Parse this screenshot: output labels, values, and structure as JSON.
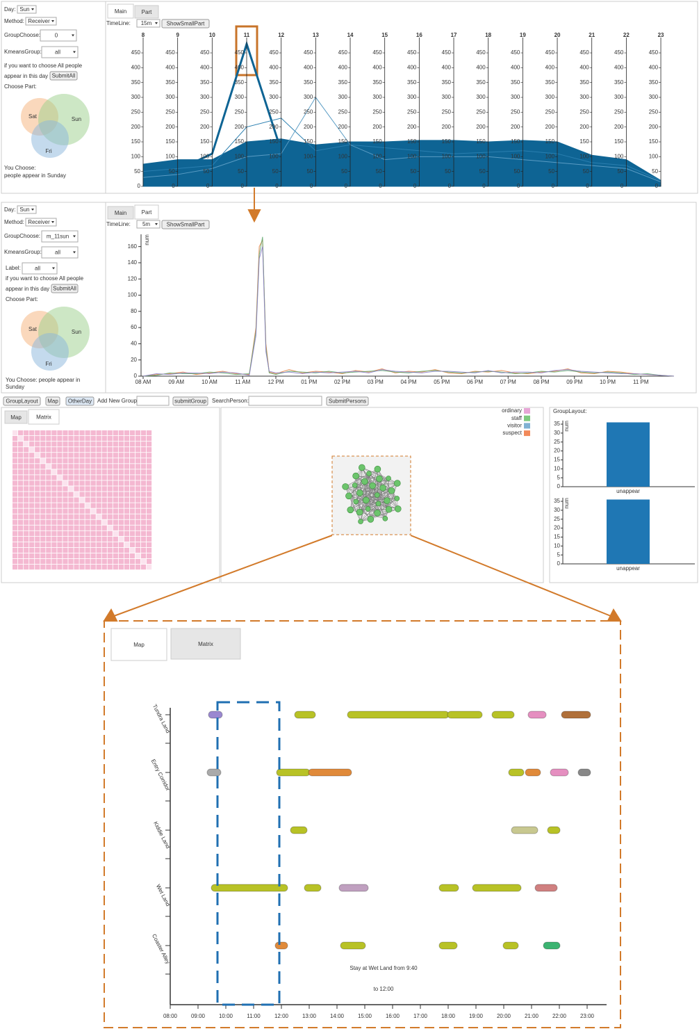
{
  "main_panel": {
    "day_label": "Day:",
    "day": "Sun",
    "method_label": "Method:",
    "method": "Receiver",
    "group_label": "GroupChoose:",
    "group": "0",
    "kmeans_label": "KmeansGroup:",
    "kmeans": "all",
    "note_lines": [
      "if you want to choose All people",
      "appear in this day"
    ],
    "submit": "SubmitAll",
    "choose_part": "Choose Part:",
    "venn": [
      "Sat",
      "Sun",
      "Fri"
    ],
    "you_choose": [
      "You Choose:",
      "people appear in Sunday"
    ],
    "tabs": [
      "Main",
      "Part"
    ],
    "timeline_label": "TimeLine:",
    "timeline": "15m",
    "show_button": "ShowSmallPart"
  },
  "part_panel": {
    "day_label": "Day:",
    "day": "Sun",
    "method_label": "Method:",
    "method": "Receiver",
    "group_label": "GroupChoose:",
    "group": "m_11sun",
    "kmeans_label": "KmeansGroup:",
    "kmeans": "all",
    "label_label": "Label:",
    "label": "all",
    "note_lines": [
      "if you want to choose All people",
      "appear in this day"
    ],
    "submit": "SubmitAll",
    "choose_part": "Choose Part:",
    "venn": [
      "Sat",
      "Sun",
      "Fri"
    ],
    "you_choose": [
      "You Choose: people appear in",
      "Sunday"
    ],
    "tabs": [
      "Main",
      "Part"
    ],
    "timeline_label": "TimeLine:",
    "timeline": "5m",
    "show_button": "ShowSmallPart"
  },
  "toolbar": {
    "buttons_left": [
      "GroupLayout",
      "Map",
      "OtherDay"
    ],
    "add_group_label": "Add New Group:",
    "submit_group": "submitGroup",
    "search_label": "SearchPerson:",
    "submit_persons": "SubmitPersons"
  },
  "matrix_panel": {
    "tabs": [
      "Map",
      "Matrix"
    ]
  },
  "graph_panel": {
    "legend": [
      {
        "label": "ordinary",
        "color": "#e7a6d6"
      },
      {
        "label": "staff",
        "color": "#7fc97f"
      },
      {
        "label": "visitor",
        "color": "#80b1d3"
      },
      {
        "label": "suspect",
        "color": "#f28a5a"
      }
    ]
  },
  "group_layout": {
    "title": "GroupLayout:"
  },
  "zoom_view": {
    "tabs": [
      "Map",
      "Matrix"
    ]
  },
  "chart_data": [
    {
      "type": "parallel",
      "categories": [
        8,
        9,
        10,
        11,
        12,
        13,
        14,
        15,
        16,
        17,
        18,
        19,
        20,
        21,
        22,
        23
      ],
      "ylim": [
        0,
        500
      ],
      "yticks": [
        0,
        50,
        100,
        150,
        200,
        250,
        300,
        350,
        400,
        450
      ],
      "series": [
        {
          "color": "#0e6494",
          "fill": true,
          "values": [
            75,
            90,
            90,
            150,
            160,
            140,
            150,
            150,
            155,
            155,
            150,
            155,
            150,
            105,
            90,
            20
          ]
        },
        {
          "color": "#0e6494",
          "values": [
            40,
            55,
            110,
            480,
            120,
            100,
            110,
            100,
            95,
            100,
            90,
            95,
            90,
            70,
            60,
            15
          ]
        },
        {
          "color": "#2a7fb0",
          "values": [
            50,
            60,
            70,
            200,
            230,
            120,
            140,
            130,
            120,
            110,
            115,
            120,
            110,
            80,
            70,
            20
          ]
        },
        {
          "color": "#5a9cc4",
          "values": [
            30,
            40,
            60,
            100,
            110,
            300,
            140,
            90,
            100,
            100,
            100,
            90,
            80,
            70,
            60,
            15
          ]
        }
      ]
    },
    {
      "type": "line",
      "ylabel": "num",
      "x": [
        8,
        8.4,
        8.8,
        9.2,
        9.6,
        10,
        10.4,
        10.8,
        11.2,
        11.4,
        11.5,
        11.6,
        11.7,
        11.8,
        12,
        12.4,
        12.8,
        13.2,
        13.6,
        14,
        14.4,
        14.8,
        15.2,
        15.6,
        16,
        16.4,
        16.8,
        17.2,
        17.6,
        18,
        18.4,
        18.8,
        19.2,
        19.6,
        20,
        20.4,
        20.8,
        21.2,
        21.6,
        22,
        22.4,
        22.8,
        23.2,
        23.6,
        24
      ],
      "xlim": [
        8,
        24
      ],
      "xticks": [
        {
          "value": 8,
          "label": "08 AM"
        },
        {
          "value": 9,
          "label": "09 AM"
        },
        {
          "value": 10,
          "label": "10 AM"
        },
        {
          "value": 11,
          "label": "11 AM"
        },
        {
          "value": 12,
          "label": "12 PM"
        },
        {
          "value": 13,
          "label": "01 PM"
        },
        {
          "value": 14,
          "label": "02 PM"
        },
        {
          "value": 15,
          "label": "03 PM"
        },
        {
          "value": 16,
          "label": "04 PM"
        },
        {
          "value": 17,
          "label": "05 PM"
        },
        {
          "value": 18,
          "label": "06 PM"
        },
        {
          "value": 19,
          "label": "07 PM"
        },
        {
          "value": 20,
          "label": "08 PM"
        },
        {
          "value": 21,
          "label": "09 PM"
        },
        {
          "value": 22,
          "label": "10 PM"
        },
        {
          "value": 23,
          "label": "11 PM"
        }
      ],
      "ylim": [
        0,
        170
      ],
      "yticks": [
        0,
        20,
        40,
        60,
        80,
        100,
        120,
        140,
        160
      ],
      "series": [
        {
          "color": "#e07b39",
          "values": [
            0,
            2,
            3,
            5,
            2,
            4,
            6,
            3,
            2,
            60,
            160,
            168,
            40,
            5,
            3,
            8,
            4,
            6,
            5,
            3,
            7,
            5,
            9,
            4,
            6,
            5,
            8,
            4,
            3,
            6,
            5,
            7,
            4,
            3,
            5,
            6,
            9,
            4,
            3,
            6,
            5,
            3,
            2,
            1,
            0
          ]
        },
        {
          "color": "#5aa469",
          "values": [
            0,
            1,
            4,
            3,
            3,
            5,
            4,
            2,
            3,
            55,
            150,
            172,
            35,
            4,
            2,
            6,
            5,
            4,
            6,
            4,
            5,
            6,
            7,
            5,
            4,
            6,
            7,
            5,
            4,
            5,
            6,
            5,
            3,
            4,
            6,
            5,
            7,
            5,
            4,
            5,
            4,
            2,
            3,
            1,
            0
          ]
        },
        {
          "color": "#8a7cc8",
          "values": [
            0,
            3,
            2,
            4,
            4,
            3,
            5,
            4,
            1,
            50,
            145,
            160,
            30,
            6,
            4,
            5,
            3,
            5,
            4,
            5,
            6,
            4,
            8,
            6,
            5,
            4,
            6,
            6,
            5,
            4,
            7,
            4,
            5,
            5,
            4,
            7,
            8,
            6,
            5,
            4,
            3,
            3,
            2,
            1,
            0
          ]
        }
      ]
    },
    {
      "type": "bar",
      "ylabel": "num",
      "categories": [
        "unappear"
      ],
      "values": [
        36
      ],
      "color": "#1f77b4",
      "ylim": [
        0,
        37
      ],
      "yticks": [
        0,
        5,
        10,
        15,
        20,
        25,
        30,
        35
      ]
    },
    {
      "type": "bar",
      "ylabel": "num",
      "categories": [
        "unappear"
      ],
      "values": [
        36
      ],
      "color": "#1f77b4",
      "ylim": [
        0,
        37
      ],
      "yticks": [
        0,
        5,
        10,
        15,
        20,
        25,
        30,
        35
      ]
    },
    {
      "type": "timeline",
      "categories": [
        "Tundra Land",
        "Entry Corridor",
        "Kiddie Land",
        "Wet Land",
        "Coaster Alley"
      ],
      "xlim": [
        8,
        23.7
      ],
      "xticks": [
        {
          "value": 8,
          "label": "08:00"
        },
        {
          "value": 9,
          "label": "09:00"
        },
        {
          "value": 10,
          "label": "10:00"
        },
        {
          "value": 11,
          "label": "11:00"
        },
        {
          "value": 12,
          "label": "12:00"
        },
        {
          "value": 13,
          "label": "13:00"
        },
        {
          "value": 14,
          "label": "14:00"
        },
        {
          "value": 15,
          "label": "15:00"
        },
        {
          "value": 16,
          "label": "16:00"
        },
        {
          "value": 17,
          "label": "17:00"
        },
        {
          "value": 18,
          "label": "18:00"
        },
        {
          "value": 19,
          "label": "19:00"
        },
        {
          "value": 20,
          "label": "20:00"
        },
        {
          "value": 21,
          "label": "21:00"
        },
        {
          "value": 22,
          "label": "22:00"
        },
        {
          "value": 23,
          "label": "23:00"
        }
      ],
      "segments": [
        {
          "category": 0,
          "start": 9.5,
          "end": 9.75,
          "color": "#9a88d0"
        },
        {
          "category": 0,
          "start": 12.6,
          "end": 13.1,
          "color": "#b8c226"
        },
        {
          "category": 0,
          "start": 14.5,
          "end": 17.9,
          "color": "#b8c226"
        },
        {
          "category": 0,
          "start": 18.1,
          "end": 19.1,
          "color": "#b8c226"
        },
        {
          "category": 0,
          "start": 19.7,
          "end": 20.25,
          "color": "#b8c226"
        },
        {
          "category": 0,
          "start": 21,
          "end": 21.4,
          "color": "#e58fc0"
        },
        {
          "category": 0,
          "start": 22.2,
          "end": 23,
          "color": "#b0703a"
        },
        {
          "category": 1,
          "start": 9.45,
          "end": 9.7,
          "color": "#aaaaaa"
        },
        {
          "category": 1,
          "start": 11.95,
          "end": 12.9,
          "color": "#b8c226"
        },
        {
          "category": 1,
          "start": 13.1,
          "end": 14.4,
          "color": "#e08a3a"
        },
        {
          "category": 1,
          "start": 20.3,
          "end": 20.6,
          "color": "#b8c226"
        },
        {
          "category": 1,
          "start": 20.9,
          "end": 21.2,
          "color": "#e08a3a"
        },
        {
          "category": 1,
          "start": 21.8,
          "end": 22.2,
          "color": "#e58fc0"
        },
        {
          "category": 1,
          "start": 22.8,
          "end": 23,
          "color": "#888888"
        },
        {
          "category": 2,
          "start": 12.45,
          "end": 12.8,
          "color": "#b8c226"
        },
        {
          "category": 2,
          "start": 20.4,
          "end": 21.1,
          "color": "#c8c890"
        },
        {
          "category": 2,
          "start": 21.7,
          "end": 21.9,
          "color": "#b8c226"
        },
        {
          "category": 3,
          "start": 9.6,
          "end": 12.1,
          "color": "#b8c226"
        },
        {
          "category": 3,
          "start": 12.95,
          "end": 13.3,
          "color": "#b8c226"
        },
        {
          "category": 3,
          "start": 14.2,
          "end": 15,
          "color": "#c0a0c0"
        },
        {
          "category": 3,
          "start": 17.8,
          "end": 18.25,
          "color": "#b8c226"
        },
        {
          "category": 3,
          "start": 19,
          "end": 20.5,
          "color": "#b8c226"
        },
        {
          "category": 3,
          "start": 21.25,
          "end": 21.8,
          "color": "#d08080"
        },
        {
          "category": 4,
          "start": 11.9,
          "end": 12.1,
          "color": "#e08a3a"
        },
        {
          "category": 4,
          "start": 14.25,
          "end": 14.9,
          "color": "#b8c226"
        },
        {
          "category": 4,
          "start": 17.8,
          "end": 18.2,
          "color": "#b8c226"
        },
        {
          "category": 4,
          "start": 20.1,
          "end": 20.4,
          "color": "#b8c226"
        },
        {
          "category": 4,
          "start": 21.55,
          "end": 21.9,
          "color": "#3cb371"
        }
      ],
      "annotation": [
        "Stay at Wet Land from 9:40",
        "to 12:00"
      ]
    }
  ]
}
